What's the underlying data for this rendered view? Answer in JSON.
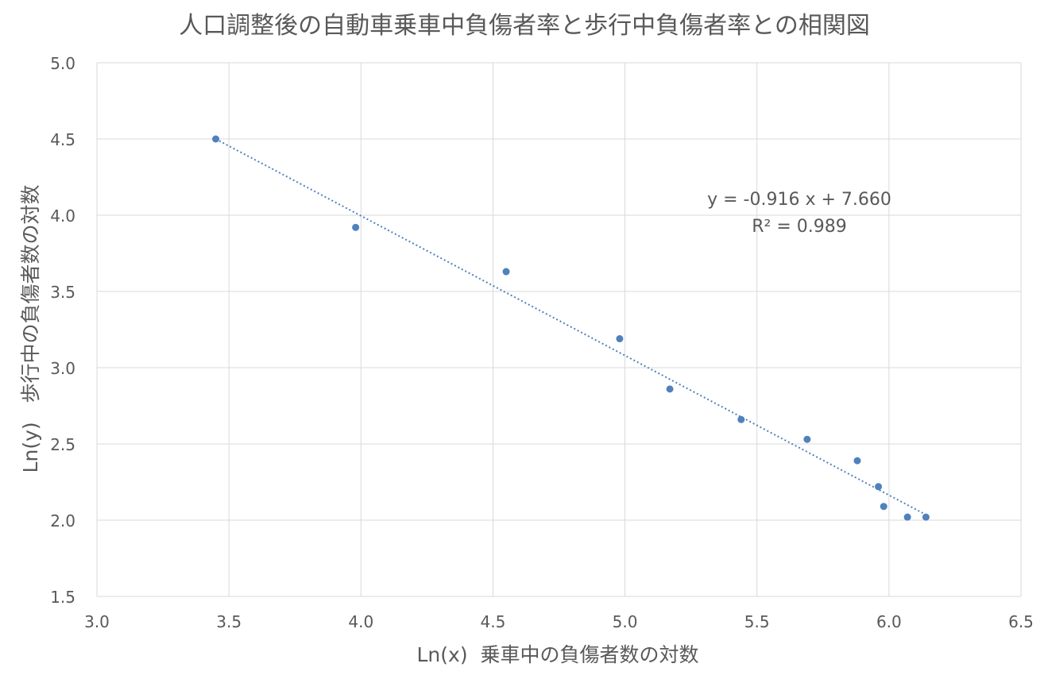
{
  "chart_data": {
    "type": "scatter",
    "title": "人口調整後の自動車乗車中負傷者率と歩行中負傷者率との相関図",
    "xlabel": "Ln(x)  乗車中の負傷者数の対数",
    "ylabel": "Ln(y)   歩行中の負傷者数の対数",
    "xlim": [
      3.0,
      6.5
    ],
    "ylim": [
      1.5,
      5.0
    ],
    "x_ticks": [
      "3.0",
      "3.5",
      "4.0",
      "4.5",
      "5.0",
      "5.5",
      "6.0",
      "6.5"
    ],
    "y_ticks": [
      "1.5",
      "2.0",
      "2.5",
      "3.0",
      "3.5",
      "4.0",
      "4.5",
      "5.0"
    ],
    "grid": true,
    "legend": "none",
    "point_color": "#4f81bd",
    "trendline_color": "#4f81bd",
    "trendline": {
      "type": "linear",
      "slope": -0.916,
      "intercept": 7.66,
      "x_range": [
        3.45,
        6.14
      ],
      "style": "dotted"
    },
    "equation_label": "y = -0.916 x + 7.660",
    "r2_label": "R² = 0.989",
    "series": [
      {
        "points": [
          {
            "x": 3.45,
            "y": 4.5
          },
          {
            "x": 3.98,
            "y": 3.92
          },
          {
            "x": 4.55,
            "y": 3.63
          },
          {
            "x": 4.98,
            "y": 3.19
          },
          {
            "x": 5.17,
            "y": 2.86
          },
          {
            "x": 5.44,
            "y": 2.66
          },
          {
            "x": 5.69,
            "y": 2.53
          },
          {
            "x": 5.88,
            "y": 2.39
          },
          {
            "x": 5.96,
            "y": 2.22
          },
          {
            "x": 5.98,
            "y": 2.09
          },
          {
            "x": 6.07,
            "y": 2.02
          },
          {
            "x": 6.14,
            "y": 2.02
          }
        ]
      }
    ]
  }
}
